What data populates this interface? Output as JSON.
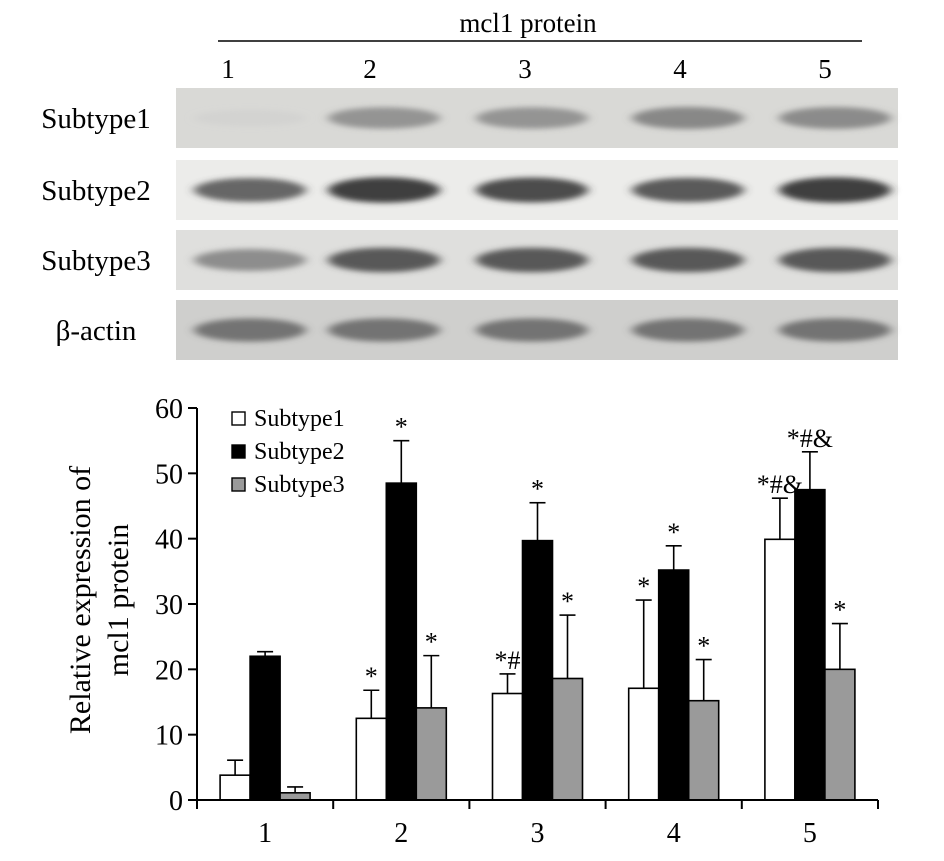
{
  "blot": {
    "header": "mcl1 protein",
    "lanes": [
      "1",
      "2",
      "3",
      "4",
      "5"
    ],
    "rows": [
      {
        "label": "Subtype1",
        "intensity": [
          0.06,
          0.55,
          0.55,
          0.62,
          0.6
        ]
      },
      {
        "label": "Subtype2",
        "intensity": [
          0.8,
          0.95,
          0.9,
          0.85,
          0.95
        ]
      },
      {
        "label": "Subtype3",
        "intensity": [
          0.6,
          0.85,
          0.85,
          0.85,
          0.85
        ]
      },
      {
        "label": "β-actin",
        "intensity": [
          0.72,
          0.72,
          0.72,
          0.72,
          0.72
        ]
      }
    ]
  },
  "chart_data": {
    "type": "bar",
    "categories": [
      "1",
      "2",
      "3",
      "4",
      "5"
    ],
    "ylabel": "Relative expression of mcl1 protein",
    "ylabel_lines": [
      "Relative expression of",
      "mcl1 protein"
    ],
    "ylim": [
      0,
      60
    ],
    "yticks": [
      "0",
      "10",
      "20",
      "30",
      "40",
      "50",
      "60"
    ],
    "legend_position": "top-left",
    "series": [
      {
        "name": "Subtype1",
        "color": "#ffffff",
        "values": [
          3.8,
          12.5,
          16.3,
          17.1,
          39.9
        ],
        "errors": [
          2.3,
          4.3,
          3.0,
          13.5,
          6.3
        ],
        "annotations": [
          "",
          "*",
          "*#",
          "*",
          "*#&"
        ]
      },
      {
        "name": "Subtype2",
        "color": "#000000",
        "values": [
          22.0,
          48.5,
          39.7,
          35.2,
          47.5
        ],
        "errors": [
          0.7,
          6.5,
          5.8,
          3.7,
          5.8
        ],
        "annotations": [
          "",
          "*",
          "*",
          "*",
          "*#&"
        ]
      },
      {
        "name": "Subtype3",
        "color": "#9a9a9a",
        "values": [
          1.1,
          14.1,
          18.6,
          15.2,
          20.0
        ],
        "errors": [
          0.9,
          8.0,
          9.7,
          6.3,
          7.0
        ],
        "annotations": [
          "",
          "*",
          "*",
          "*",
          "*"
        ]
      }
    ]
  }
}
